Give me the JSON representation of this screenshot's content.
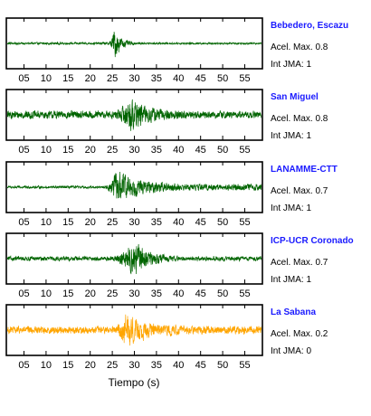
{
  "chart_data": {
    "type": "line",
    "xlabel": "Tiempo (s)",
    "xlim": [
      1,
      59
    ],
    "x_ticks": [
      "05",
      "10",
      "15",
      "20",
      "25",
      "30",
      "35",
      "40",
      "45",
      "50",
      "55"
    ],
    "x_tick_values": [
      5,
      10,
      15,
      20,
      25,
      30,
      35,
      40,
      45,
      50,
      55
    ],
    "grid": false,
    "panels": [
      {
        "station": "Bebedero, Escazu",
        "acel_label": "Acel. Max.",
        "acel_max": "0.8",
        "jma_label": "Int JMA:",
        "int_jma": "1",
        "color": "#006400",
        "noise_amplitude": 0.06,
        "burst_start": 24,
        "burst_peak": 25.5,
        "burst_end": 30,
        "burst_amplitude": 0.9,
        "coda_amplitude": 0.05,
        "show_x_ticks": true
      },
      {
        "station": "San Miguel",
        "acel_label": "Acel. Max.",
        "acel_max": "0.8",
        "jma_label": "Int JMA:",
        "int_jma": "1",
        "color": "#006400",
        "noise_amplitude": 0.22,
        "burst_start": 25,
        "burst_peak": 29,
        "burst_end": 42,
        "burst_amplitude": 0.95,
        "coda_amplitude": 0.2,
        "show_x_ticks": true
      },
      {
        "station": "LANAMME-CTT",
        "acel_label": "Acel. Max.",
        "acel_max": "0.7",
        "jma_label": "Int JMA:",
        "int_jma": "1",
        "color": "#006400",
        "noise_amplitude": 0.07,
        "burst_start": 23,
        "burst_peak": 26,
        "burst_end": 40,
        "burst_amplitude": 0.95,
        "coda_amplitude": 0.18,
        "show_x_ticks": true
      },
      {
        "station": "ICP-UCR Coronado",
        "acel_label": "Acel. Max.",
        "acel_max": "0.7",
        "jma_label": "Int JMA:",
        "int_jma": "1",
        "color": "#006400",
        "noise_amplitude": 0.12,
        "burst_start": 24,
        "burst_peak": 30,
        "burst_end": 40,
        "burst_amplitude": 0.95,
        "coda_amplitude": 0.12,
        "show_x_ticks": true
      },
      {
        "station": "La Sabana",
        "acel_label": "Acel. Max.",
        "acel_max": "0.2",
        "jma_label": "Int JMA:",
        "int_jma": "0",
        "color": "#ffa500",
        "noise_amplitude": 0.2,
        "burst_start": 25,
        "burst_peak": 28,
        "burst_end": 42,
        "burst_amplitude": 0.95,
        "coda_amplitude": 0.22,
        "show_x_ticks": true
      }
    ]
  }
}
